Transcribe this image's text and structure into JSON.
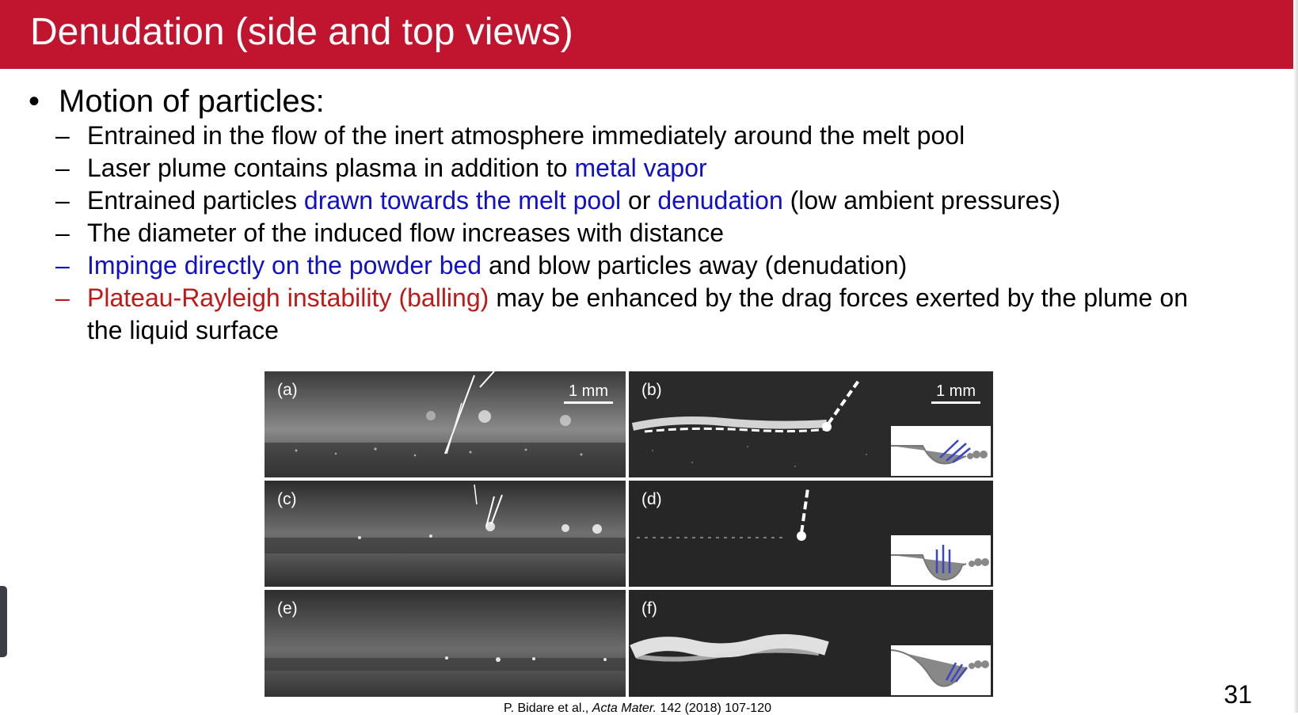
{
  "slide": {
    "title": "Denudation (side and top views)",
    "main_bullet": "Motion of particles:",
    "sub_bullets": [
      {
        "parts": [
          {
            "text": "Entrained in the flow of the inert atmosphere immediately around the melt pool",
            "color": "black"
          }
        ]
      },
      {
        "parts": [
          {
            "text": "Laser plume contains plasma in addition to ",
            "color": "black"
          },
          {
            "text": "metal vapor",
            "color": "blue"
          }
        ]
      },
      {
        "parts": [
          {
            "text": "Entrained particles ",
            "color": "black"
          },
          {
            "text": "drawn towards the melt pool",
            "color": "blue"
          },
          {
            "text": " or ",
            "color": "black"
          },
          {
            "text": "denudation",
            "color": "blue"
          },
          {
            "text": " (low ambient pressures)",
            "color": "black"
          }
        ]
      },
      {
        "parts": [
          {
            "text": "The diameter of the induced flow increases with distance",
            "color": "black"
          }
        ]
      },
      {
        "dash_color": "blue",
        "parts": [
          {
            "text": "Impinge directly on the powder bed",
            "color": "blue"
          },
          {
            "text": " and blow particles away (denudation)",
            "color": "black"
          }
        ]
      },
      {
        "dash_color": "red",
        "justify": true,
        "parts": [
          {
            "text": "Plateau-Rayleigh instability (balling)",
            "color": "red"
          },
          {
            "text": " may be enhanced by the drag forces exerted by the plume on the liquid surface",
            "color": "black"
          }
        ]
      }
    ],
    "figure": {
      "panels": [
        "(a)",
        "(b)",
        "(c)",
        "(d)",
        "(e)",
        "(f)"
      ],
      "scale_label": "1 mm",
      "arrow_color": "#3a45c8"
    },
    "citation": "P. Bidare et al., Acta Mater. 142 (2018) 107-120",
    "page_number": "31",
    "colors": {
      "title_bar": "#c1152f",
      "blue_text": "#1010c8",
      "red_text": "#c01818"
    }
  }
}
